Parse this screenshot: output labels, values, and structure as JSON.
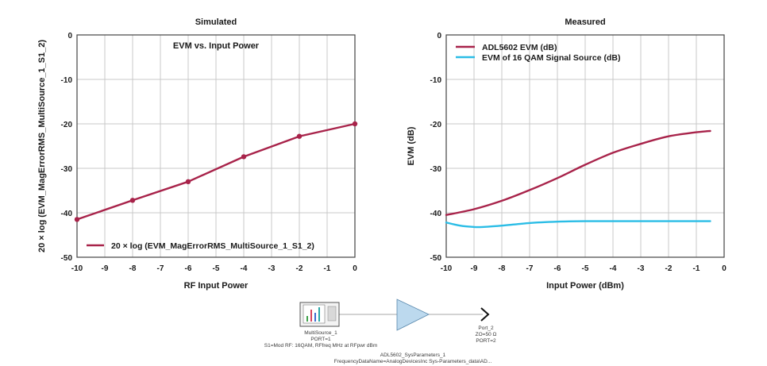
{
  "chart_data": [
    {
      "type": "line",
      "title": "Simulated",
      "subtitle": "EVM vs. Input Power",
      "xlabel": "RF Input Power",
      "ylabel": "20 × log (EVM_MagErrorRMS_MultiSource_1_S1_2)",
      "xlim": [
        -10,
        0
      ],
      "ylim": [
        -50,
        0
      ],
      "xticks": [
        "-10",
        "-9",
        "-8",
        "-7",
        "-6",
        "-5",
        "-4",
        "-3",
        "-2",
        "-1",
        "0"
      ],
      "yticks": [
        "0",
        "-10",
        "-20",
        "-30",
        "-40",
        "-50"
      ],
      "grid": true,
      "legend_position": "bottom-center",
      "series": [
        {
          "name": "20 × log (EVM_MagErrorRMS_MultiSource_1_S1_2)",
          "color": "#a8234a",
          "markers": true,
          "x": [
            -10,
            -8,
            -6,
            -4,
            -2,
            0
          ],
          "y": [
            -41.5,
            -37.2,
            -33.0,
            -27.4,
            -22.8,
            -20.0
          ]
        }
      ]
    },
    {
      "type": "line",
      "title": "Measured",
      "xlabel": "Input Power (dBm)",
      "ylabel": "EVM (dB)",
      "xlim": [
        -10,
        0
      ],
      "ylim": [
        -50,
        0
      ],
      "xticks": [
        "-10",
        "-9",
        "-8",
        "-7",
        "-6",
        "-5",
        "-4",
        "-3",
        "-2",
        "-1",
        "0"
      ],
      "yticks": [
        "0",
        "-10",
        "-20",
        "-30",
        "-40",
        "-50"
      ],
      "grid": true,
      "legend_position": "top-left",
      "series": [
        {
          "name": "ADL5602 EVM (dB)",
          "color": "#a8234a",
          "markers": false,
          "x": [
            -10,
            -9,
            -8,
            -7,
            -6,
            -5,
            -4,
            -3,
            -2,
            -1,
            -0.5
          ],
          "y": [
            -40.5,
            -39.2,
            -37.3,
            -34.9,
            -32.2,
            -29.2,
            -26.5,
            -24.5,
            -22.8,
            -21.9,
            -21.6
          ]
        },
        {
          "name": "EVM of 16 QAM Signal Source (dB)",
          "color": "#2bbde6",
          "markers": false,
          "x": [
            -10,
            -9.5,
            -9,
            -8.7,
            -8,
            -7,
            -6,
            -5,
            -4,
            -3,
            -2,
            -1,
            -0.5
          ],
          "y": [
            -42.2,
            -42.9,
            -43.2,
            -43.2,
            -42.9,
            -42.3,
            -42.0,
            -41.9,
            -41.9,
            -41.9,
            -41.9,
            -41.9,
            -41.9
          ]
        }
      ]
    }
  ],
  "schematic": {
    "source_name": "MultiSource_1",
    "source_port": "PORT=1",
    "source_params": "S1=Mod RF: 16QAM, RFfreq MHz at RFpwr dBm",
    "amp_name": "ADL5602_SysParameters_1",
    "amp_params": "FrequencyDataName=AnalogDevicesInc Sys-Parameters_data\\AD...",
    "port_name": "Port_2",
    "port_z": "ZO=50 Ω",
    "port_num": "PORT=2",
    "amp_color": "#bcd9ee",
    "instrument_bar_colors": [
      "#3fa24a",
      "#d7425a",
      "#3e6bd1",
      "#2aa6a6"
    ]
  }
}
